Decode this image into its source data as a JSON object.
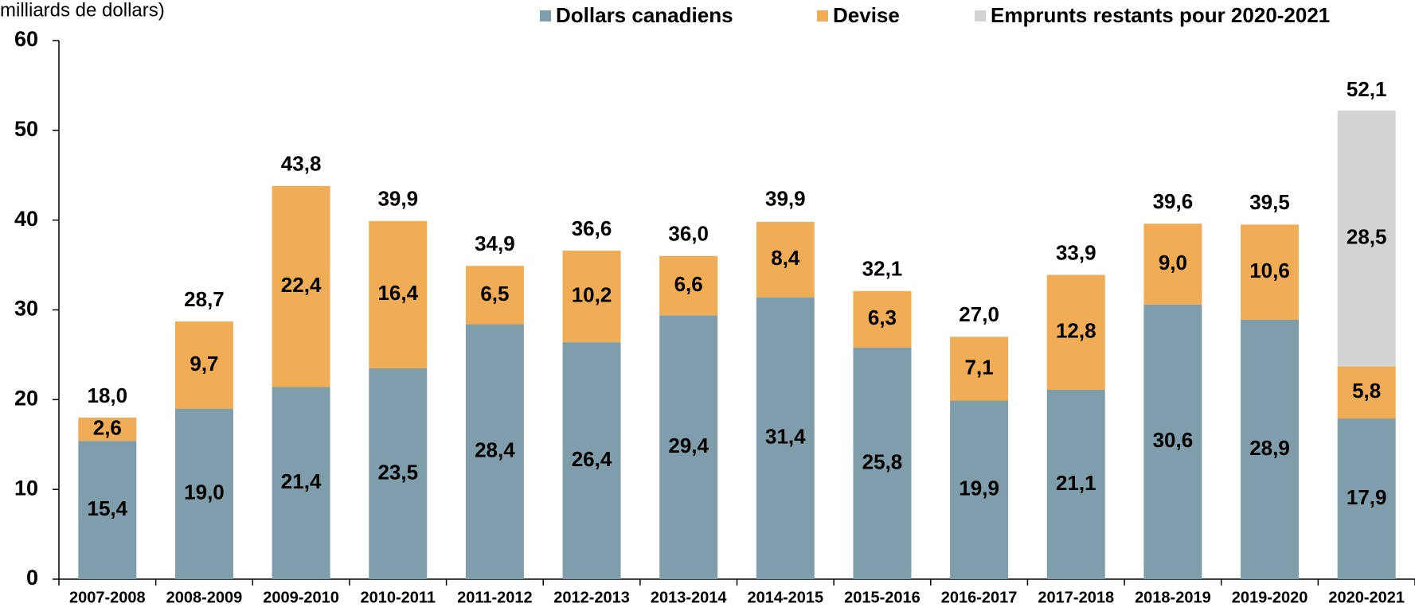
{
  "chart_data": {
    "type": "bar",
    "stacked": true,
    "y_label": "milliards de dollars)",
    "categories": [
      "2007-2008",
      "2008-2009",
      "2009-2010",
      "2010-2011",
      "2011-2012",
      "2012-2013",
      "2013-2014",
      "2014-2015",
      "2015-2016",
      "2016-2017",
      "2017-2018",
      "2018-2019",
      "2019-2020",
      "2020-2021"
    ],
    "series": [
      {
        "name": "Dollars canadiens",
        "color": "#7f9dab",
        "label_color": "#ffffff",
        "values": [
          15.4,
          19.0,
          21.4,
          23.5,
          28.4,
          26.4,
          29.4,
          31.4,
          25.8,
          19.9,
          21.1,
          30.6,
          28.9,
          17.9
        ],
        "value_labels": [
          "15,4",
          "19,0",
          "21,4",
          "23,5",
          "28,4",
          "26,4",
          "29,4",
          "31,4",
          "25,8",
          "19,9",
          "21,1",
          "30,6",
          "28,9",
          "17,9"
        ]
      },
      {
        "name": "Devise",
        "color": "#f0ad55",
        "label_color": "#000000",
        "values": [
          2.6,
          9.7,
          22.4,
          16.4,
          6.5,
          10.2,
          6.6,
          8.4,
          6.3,
          7.1,
          12.8,
          9.0,
          10.6,
          5.8
        ],
        "value_labels": [
          "2,6",
          "9,7",
          "22,4",
          "16,4",
          "6,5",
          "10,2",
          "6,6",
          "8,4",
          "6,3",
          "7,1",
          "12,8",
          "9,0",
          "10,6",
          "5,8"
        ]
      },
      {
        "name": "Emprunts restants pour 2020-2021",
        "color": "#d3d3d3",
        "label_color": "#000000",
        "values": [
          null,
          null,
          null,
          null,
          null,
          null,
          null,
          null,
          null,
          null,
          null,
          null,
          null,
          28.5
        ],
        "value_labels": [
          null,
          null,
          null,
          null,
          null,
          null,
          null,
          null,
          null,
          null,
          null,
          null,
          null,
          "28,5"
        ]
      }
    ],
    "totals": [
      18.0,
      28.7,
      43.8,
      39.9,
      34.9,
      36.6,
      36.0,
      39.9,
      32.1,
      27.0,
      33.9,
      39.6,
      39.5,
      52.1
    ],
    "total_labels": [
      "18,0",
      "28,7",
      "43,8",
      "39,9",
      "34,9",
      "36,6",
      "36,0",
      "39,9",
      "32,1",
      "27,0",
      "33,9",
      "39,6",
      "39,5",
      "52,1"
    ],
    "ylim": [
      0,
      60
    ],
    "yticks": [
      0,
      10,
      20,
      30,
      40,
      50,
      60
    ],
    "grid": false
  }
}
